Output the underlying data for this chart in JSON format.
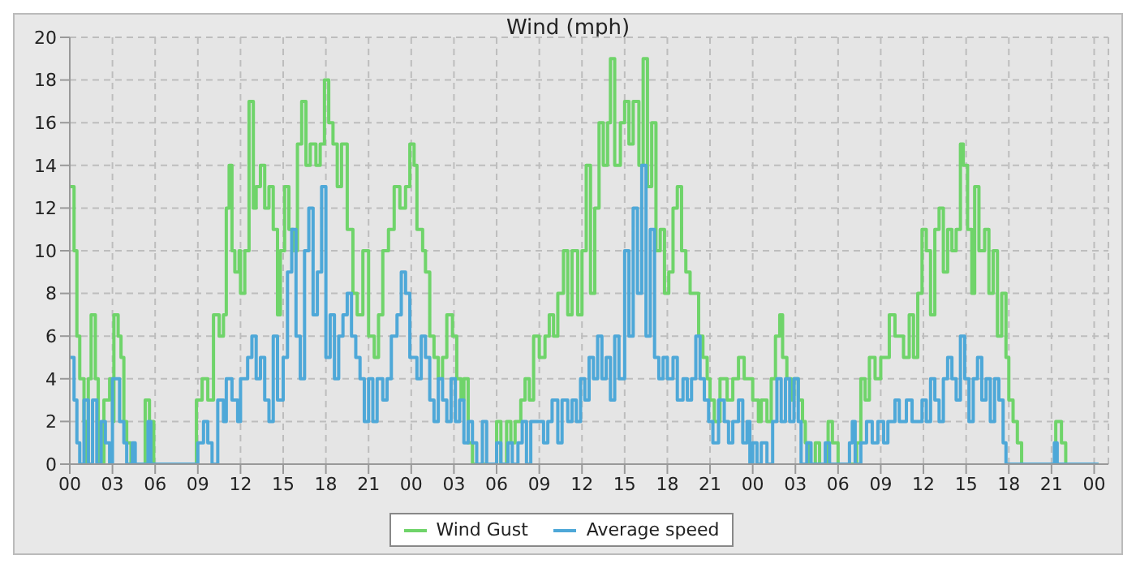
{
  "chart_data": {
    "type": "step",
    "title": "Wind (mph)",
    "xlim": [
      0,
      73
    ],
    "ylim": [
      0,
      20
    ],
    "xticks": [
      {
        "value": 0,
        "label": "00"
      },
      {
        "value": 3,
        "label": "03"
      },
      {
        "value": 6,
        "label": "06"
      },
      {
        "value": 9,
        "label": "09"
      },
      {
        "value": 12,
        "label": "12"
      },
      {
        "value": 15,
        "label": "15"
      },
      {
        "value": 18,
        "label": "18"
      },
      {
        "value": 21,
        "label": "21"
      },
      {
        "value": 24,
        "label": "00"
      },
      {
        "value": 27,
        "label": "03"
      },
      {
        "value": 30,
        "label": "06"
      },
      {
        "value": 33,
        "label": "09"
      },
      {
        "value": 36,
        "label": "12"
      },
      {
        "value": 39,
        "label": "15"
      },
      {
        "value": 42,
        "label": "18"
      },
      {
        "value": 45,
        "label": "21"
      },
      {
        "value": 48,
        "label": "00"
      },
      {
        "value": 51,
        "label": "03"
      },
      {
        "value": 54,
        "label": "06"
      },
      {
        "value": 57,
        "label": "09"
      },
      {
        "value": 60,
        "label": "12"
      },
      {
        "value": 63,
        "label": "15"
      },
      {
        "value": 66,
        "label": "18"
      },
      {
        "value": 69,
        "label": "21"
      },
      {
        "value": 72,
        "label": "00"
      }
    ],
    "yticks": [
      0,
      2,
      4,
      6,
      8,
      10,
      12,
      14,
      16,
      18,
      20
    ],
    "grid": true,
    "legend": "bottom",
    "marker": "none",
    "line_style": "solid",
    "series": [
      {
        "name": "Wind Gust",
        "color": "#6fd46a",
        "x": [
          0,
          0.3,
          0.5,
          0.7,
          1.0,
          1.2,
          1.3,
          1.5,
          1.8,
          2.0,
          2.4,
          2.8,
          3.0,
          3.1,
          3.4,
          3.6,
          3.8,
          4.0,
          4.3,
          5.3,
          5.6,
          5.9,
          8.9,
          9.3,
          9.7,
          10.1,
          10.5,
          10.8,
          11.0,
          11.2,
          11.4,
          11.6,
          11.9,
          12.0,
          12.3,
          12.6,
          12.9,
          13.1,
          13.4,
          13.7,
          14.0,
          14.3,
          14.6,
          14.8,
          15.1,
          15.4,
          15.7,
          16.0,
          16.3,
          16.6,
          16.9,
          17.3,
          17.6,
          17.9,
          18.2,
          18.5,
          18.8,
          19.1,
          19.5,
          19.9,
          20.2,
          20.6,
          21.0,
          21.4,
          21.7,
          22.0,
          22.4,
          22.8,
          23.2,
          23.6,
          23.9,
          24.2,
          24.4,
          24.8,
          25.0,
          25.3,
          25.6,
          25.9,
          26.2,
          26.5,
          26.9,
          27.2,
          27.5,
          27.7,
          28.0,
          28.3,
          30.0,
          30.3,
          30.7,
          31.0,
          31.3,
          31.7,
          32.0,
          32.3,
          32.6,
          33.0,
          33.4,
          33.7,
          34.0,
          34.3,
          34.7,
          35.0,
          35.3,
          35.7,
          36.0,
          36.3,
          36.6,
          36.9,
          37.2,
          37.5,
          37.8,
          38.0,
          38.3,
          38.7,
          39.0,
          39.3,
          39.6,
          40.0,
          40.3,
          40.6,
          40.9,
          41.2,
          41.5,
          41.8,
          42.1,
          42.4,
          42.7,
          43.0,
          43.3,
          43.6,
          44.2,
          44.5,
          44.8,
          45.0,
          45.3,
          45.7,
          46.2,
          46.6,
          47.0,
          47.4,
          48.0,
          48.4,
          48.6,
          49.0,
          49.3,
          49.6,
          49.9,
          50.1,
          50.4,
          50.7,
          50.9,
          51.2,
          51.5,
          51.7,
          52.0,
          52.4,
          52.7,
          53.3,
          53.6,
          54.0,
          55.3,
          55.6,
          55.9,
          56.2,
          56.6,
          57.0,
          57.6,
          58.0,
          58.6,
          59.0,
          59.3,
          59.6,
          59.9,
          60.2,
          60.5,
          60.8,
          61.1,
          61.4,
          61.7,
          62.0,
          62.3,
          62.6,
          62.8,
          63.1,
          63.4,
          63.6,
          63.9,
          64.3,
          64.6,
          64.9,
          65.2,
          65.5,
          65.8,
          66.0,
          66.3,
          66.6,
          66.9,
          69.3,
          69.7,
          70.0,
          72.3
        ],
        "values": [
          13,
          10,
          6,
          4,
          2,
          0,
          4,
          7,
          4,
          0,
          3,
          4,
          2,
          7,
          6,
          5,
          2,
          1,
          0,
          3,
          2,
          0,
          3,
          4,
          3,
          7,
          6,
          7,
          12,
          14,
          10,
          9,
          10,
          8,
          10,
          17,
          12,
          13,
          14,
          12,
          13,
          11,
          7,
          10,
          13,
          11,
          10,
          15,
          17,
          14,
          15,
          14,
          15,
          18,
          16,
          15,
          13,
          15,
          11,
          8,
          7,
          10,
          6,
          5,
          7,
          10,
          11,
          13,
          12,
          13,
          15,
          14,
          11,
          10,
          9,
          6,
          5,
          4,
          5,
          7,
          6,
          4,
          3,
          4,
          1,
          0,
          2,
          0,
          2,
          1,
          2,
          3,
          4,
          3,
          6,
          5,
          6,
          7,
          6,
          8,
          10,
          7,
          10,
          7,
          10,
          14,
          8,
          12,
          16,
          14,
          16,
          19,
          14,
          16,
          17,
          15,
          17,
          14,
          19,
          13,
          16,
          10,
          11,
          8,
          9,
          12,
          13,
          10,
          9,
          8,
          6,
          5,
          4,
          3,
          2,
          4,
          3,
          4,
          5,
          4,
          3,
          2,
          3,
          2,
          4,
          6,
          7,
          5,
          4,
          3,
          4,
          3,
          2,
          1,
          0,
          1,
          0,
          2,
          1,
          0,
          1,
          4,
          3,
          5,
          4,
          5,
          7,
          6,
          5,
          7,
          5,
          8,
          11,
          10,
          7,
          11,
          12,
          9,
          11,
          10,
          11,
          15,
          14,
          11,
          8,
          13,
          10,
          11,
          8,
          10,
          6,
          8,
          5,
          3,
          2,
          1,
          0,
          2,
          1,
          0,
          0
        ]
      },
      {
        "name": "Average speed",
        "color": "#4ea8d8",
        "x": [
          0,
          0.3,
          0.5,
          0.7,
          1.0,
          1.3,
          1.6,
          1.9,
          2.2,
          2.5,
          2.8,
          3.0,
          3.5,
          3.8,
          4.0,
          4.4,
          4.6,
          5.5,
          5.7,
          9.0,
          9.4,
          9.7,
          10.0,
          10.4,
          10.8,
          11.0,
          11.4,
          11.8,
          12.0,
          12.5,
          12.8,
          13.1,
          13.4,
          13.7,
          14.0,
          14.3,
          14.6,
          15.0,
          15.3,
          15.6,
          15.9,
          16.2,
          16.5,
          16.8,
          17.1,
          17.4,
          17.7,
          18.0,
          18.3,
          18.6,
          18.9,
          19.2,
          19.5,
          19.8,
          20.1,
          20.4,
          20.7,
          21.0,
          21.3,
          21.6,
          22.0,
          22.3,
          22.6,
          23.0,
          23.3,
          23.6,
          23.9,
          24.2,
          24.4,
          24.7,
          25.0,
          25.3,
          25.6,
          25.9,
          26.2,
          26.5,
          26.8,
          27.1,
          27.4,
          27.7,
          28.0,
          28.3,
          28.6,
          29.0,
          29.3,
          30.0,
          30.3,
          30.8,
          31.1,
          31.5,
          31.8,
          32.1,
          32.4,
          33.0,
          33.3,
          33.6,
          33.9,
          34.3,
          34.6,
          35.0,
          35.3,
          35.6,
          35.9,
          36.2,
          36.5,
          36.8,
          37.1,
          37.4,
          37.7,
          38.0,
          38.3,
          38.6,
          39.0,
          39.3,
          39.6,
          39.9,
          40.2,
          40.5,
          40.8,
          41.1,
          41.4,
          41.7,
          42.0,
          42.4,
          42.7,
          43.1,
          43.4,
          43.7,
          44.0,
          44.3,
          44.6,
          44.9,
          45.2,
          45.6,
          46.0,
          46.3,
          46.6,
          47.0,
          47.3,
          47.6,
          47.8,
          48.0,
          48.3,
          48.6,
          49.0,
          49.4,
          49.7,
          50.0,
          50.3,
          50.6,
          50.9,
          51.2,
          51.4,
          51.8,
          52.1,
          53.1,
          53.4,
          54.8,
          55.0,
          55.2,
          55.6,
          56.0,
          56.4,
          56.8,
          57.2,
          57.5,
          58.0,
          58.3,
          58.8,
          59.2,
          59.9,
          60.2,
          60.5,
          60.8,
          61.1,
          61.4,
          61.7,
          62.0,
          62.3,
          62.6,
          62.9,
          63.2,
          63.5,
          63.8,
          64.1,
          64.4,
          64.7,
          65.0,
          65.3,
          65.6,
          65.8,
          69.2,
          69.4,
          72.3
        ],
        "values": [
          5,
          3,
          1,
          0,
          3,
          0,
          3,
          0,
          2,
          1,
          0,
          4,
          2,
          1,
          0,
          1,
          0,
          2,
          0,
          1,
          2,
          1,
          0,
          3,
          2,
          4,
          3,
          2,
          4,
          5,
          6,
          4,
          5,
          3,
          2,
          6,
          3,
          5,
          9,
          11,
          6,
          4,
          10,
          12,
          7,
          9,
          13,
          5,
          7,
          4,
          6,
          7,
          8,
          6,
          5,
          4,
          2,
          4,
          2,
          4,
          3,
          4,
          6,
          7,
          9,
          8,
          5,
          5,
          4,
          6,
          5,
          3,
          2,
          4,
          3,
          2,
          4,
          2,
          3,
          1,
          2,
          1,
          0,
          2,
          0,
          1,
          0,
          1,
          0,
          1,
          2,
          0,
          2,
          2,
          1,
          2,
          3,
          1,
          3,
          2,
          3,
          2,
          4,
          3,
          5,
          4,
          6,
          4,
          5,
          3,
          6,
          4,
          10,
          6,
          12,
          8,
          14,
          6,
          11,
          5,
          4,
          5,
          4,
          5,
          3,
          4,
          3,
          4,
          6,
          4,
          3,
          2,
          1,
          3,
          2,
          1,
          2,
          3,
          1,
          2,
          0,
          1,
          0,
          1,
          0,
          2,
          4,
          2,
          4,
          2,
          4,
          2,
          0,
          1,
          0,
          1,
          0,
          1,
          2,
          0,
          1,
          2,
          1,
          2,
          1,
          2,
          3,
          2,
          3,
          2,
          3,
          2,
          4,
          3,
          2,
          4,
          5,
          4,
          3,
          6,
          4,
          2,
          4,
          5,
          3,
          4,
          2,
          4,
          3,
          1,
          0,
          1,
          0,
          0
        ]
      }
    ]
  }
}
